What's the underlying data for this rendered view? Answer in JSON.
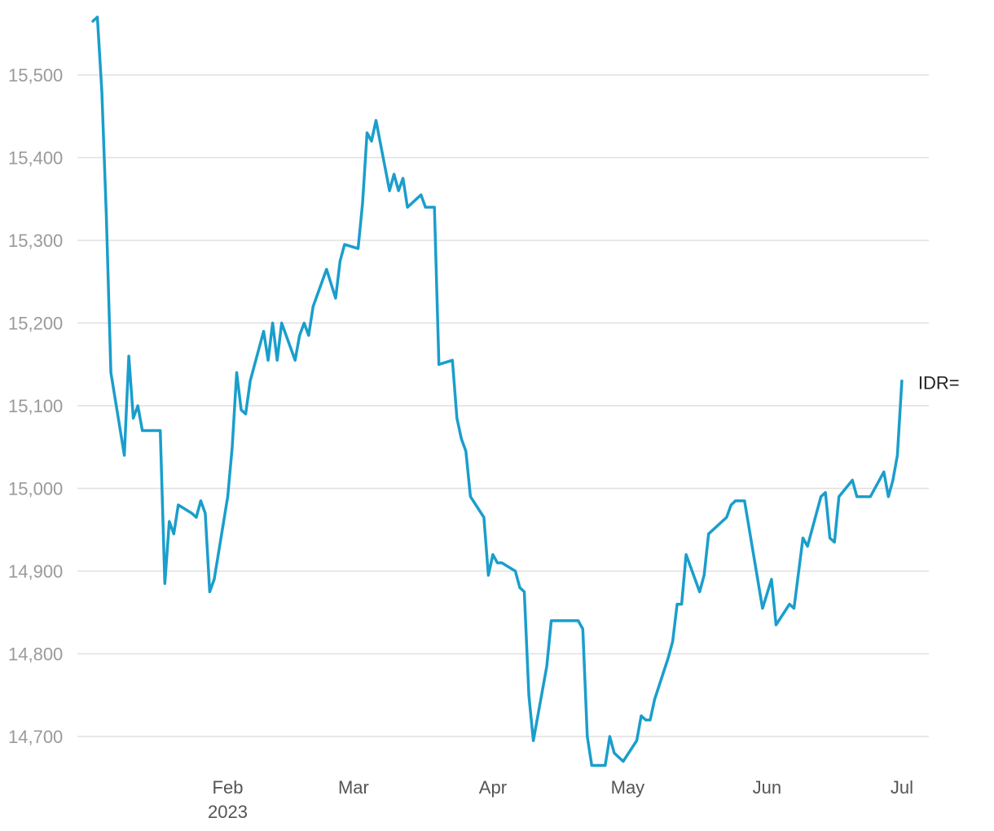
{
  "chart_data": {
    "type": "line",
    "title": "",
    "xlabel": "",
    "ylabel": "",
    "ylim": [
      14665,
      15570
    ],
    "xlim": [
      "2023-01-02",
      "2023-07-07"
    ],
    "grid": true,
    "line_color": "#1a9ecc",
    "yticks": [
      {
        "value": 14700,
        "label": "14,700"
      },
      {
        "value": 14800,
        "label": "14,800"
      },
      {
        "value": 14900,
        "label": "14,900"
      },
      {
        "value": 15000,
        "label": "15,000"
      },
      {
        "value": 15100,
        "label": "15,100"
      },
      {
        "value": 15200,
        "label": "15,200"
      },
      {
        "value": 15300,
        "label": "15,300"
      },
      {
        "value": 15400,
        "label": "15,400"
      },
      {
        "value": 15500,
        "label": "15,500"
      }
    ],
    "xticks": [
      {
        "date": "2023-02-01",
        "label": "Feb",
        "sublabel": "2023"
      },
      {
        "date": "2023-03-01",
        "label": "Mar",
        "sublabel": ""
      },
      {
        "date": "2023-04-01",
        "label": "Apr",
        "sublabel": ""
      },
      {
        "date": "2023-05-01",
        "label": "May",
        "sublabel": ""
      },
      {
        "date": "2023-06-01",
        "label": "Jun",
        "sublabel": ""
      },
      {
        "date": "2023-07-01",
        "label": "Jul",
        "sublabel": ""
      }
    ],
    "series": [
      {
        "name": "IDR=",
        "points": [
          [
            "2023-01-02",
            15565
          ],
          [
            "2023-01-03",
            15570
          ],
          [
            "2023-01-04",
            15480
          ],
          [
            "2023-01-05",
            15330
          ],
          [
            "2023-01-06",
            15140
          ],
          [
            "2023-01-09",
            15040
          ],
          [
            "2023-01-10",
            15160
          ],
          [
            "2023-01-11",
            15085
          ],
          [
            "2023-01-12",
            15100
          ],
          [
            "2023-01-13",
            15070
          ],
          [
            "2023-01-16",
            15070
          ],
          [
            "2023-01-17",
            15070
          ],
          [
            "2023-01-18",
            14885
          ],
          [
            "2023-01-19",
            14960
          ],
          [
            "2023-01-20",
            14945
          ],
          [
            "2023-01-21",
            14980
          ],
          [
            "2023-01-24",
            14970
          ],
          [
            "2023-01-25",
            14965
          ],
          [
            "2023-01-26",
            14985
          ],
          [
            "2023-01-27",
            14970
          ],
          [
            "2023-01-28",
            14875
          ],
          [
            "2023-01-29",
            14890
          ],
          [
            "2023-02-01",
            14990
          ],
          [
            "2023-02-02",
            15050
          ],
          [
            "2023-02-03",
            15140
          ],
          [
            "2023-02-04",
            15095
          ],
          [
            "2023-02-05",
            15090
          ],
          [
            "2023-02-06",
            15130
          ],
          [
            "2023-02-09",
            15190
          ],
          [
            "2023-02-10",
            15155
          ],
          [
            "2023-02-11",
            15200
          ],
          [
            "2023-02-12",
            15155
          ],
          [
            "2023-02-13",
            15200
          ],
          [
            "2023-02-16",
            15155
          ],
          [
            "2023-02-17",
            15185
          ],
          [
            "2023-02-18",
            15200
          ],
          [
            "2023-02-19",
            15185
          ],
          [
            "2023-02-20",
            15220
          ],
          [
            "2023-02-23",
            15265
          ],
          [
            "2023-02-25",
            15230
          ],
          [
            "2023-02-26",
            15275
          ],
          [
            "2023-02-27",
            15295
          ],
          [
            "2023-03-02",
            15290
          ],
          [
            "2023-03-03",
            15345
          ],
          [
            "2023-03-04",
            15430
          ],
          [
            "2023-03-05",
            15420
          ],
          [
            "2023-03-06",
            15445
          ],
          [
            "2023-03-09",
            15360
          ],
          [
            "2023-03-10",
            15380
          ],
          [
            "2023-03-11",
            15360
          ],
          [
            "2023-03-12",
            15375
          ],
          [
            "2023-03-13",
            15340
          ],
          [
            "2023-03-16",
            15355
          ],
          [
            "2023-03-17",
            15340
          ],
          [
            "2023-03-19",
            15340
          ],
          [
            "2023-03-20",
            15150
          ],
          [
            "2023-03-23",
            15155
          ],
          [
            "2023-03-24",
            15085
          ],
          [
            "2023-03-25",
            15060
          ],
          [
            "2023-03-26",
            15045
          ],
          [
            "2023-03-27",
            14990
          ],
          [
            "2023-03-30",
            14965
          ],
          [
            "2023-03-31",
            14895
          ],
          [
            "2023-04-01",
            14920
          ],
          [
            "2023-04-02",
            14910
          ],
          [
            "2023-04-03",
            14910
          ],
          [
            "2023-04-06",
            14900
          ],
          [
            "2023-04-07",
            14880
          ],
          [
            "2023-04-08",
            14875
          ],
          [
            "2023-04-09",
            14750
          ],
          [
            "2023-04-10",
            14695
          ],
          [
            "2023-04-13",
            14785
          ],
          [
            "2023-04-14",
            14840
          ],
          [
            "2023-04-20",
            14840
          ],
          [
            "2023-04-21",
            14830
          ],
          [
            "2023-04-22",
            14700
          ],
          [
            "2023-04-23",
            14665
          ],
          [
            "2023-04-26",
            14665
          ],
          [
            "2023-04-27",
            14700
          ],
          [
            "2023-04-28",
            14680
          ],
          [
            "2023-04-30",
            14670
          ],
          [
            "2023-05-03",
            14695
          ],
          [
            "2023-05-04",
            14725
          ],
          [
            "2023-05-05",
            14720
          ],
          [
            "2023-05-06",
            14720
          ],
          [
            "2023-05-07",
            14745
          ],
          [
            "2023-05-10",
            14795
          ],
          [
            "2023-05-11",
            14815
          ],
          [
            "2023-05-12",
            14860
          ],
          [
            "2023-05-13",
            14860
          ],
          [
            "2023-05-14",
            14920
          ],
          [
            "2023-05-17",
            14875
          ],
          [
            "2023-05-18",
            14895
          ],
          [
            "2023-05-19",
            14945
          ],
          [
            "2023-05-23",
            14965
          ],
          [
            "2023-05-24",
            14980
          ],
          [
            "2023-05-25",
            14985
          ],
          [
            "2023-05-27",
            14985
          ],
          [
            "2023-05-31",
            14855
          ],
          [
            "2023-06-02",
            14890
          ],
          [
            "2023-06-03",
            14835
          ],
          [
            "2023-06-06",
            14860
          ],
          [
            "2023-06-07",
            14855
          ],
          [
            "2023-06-09",
            14940
          ],
          [
            "2023-06-10",
            14930
          ],
          [
            "2023-06-13",
            14990
          ],
          [
            "2023-06-14",
            14995
          ],
          [
            "2023-06-15",
            14940
          ],
          [
            "2023-06-16",
            14935
          ],
          [
            "2023-06-17",
            14990
          ],
          [
            "2023-06-20",
            15010
          ],
          [
            "2023-06-21",
            14990
          ],
          [
            "2023-06-24",
            14990
          ],
          [
            "2023-06-27",
            15020
          ],
          [
            "2023-06-28",
            14990
          ],
          [
            "2023-06-29",
            15010
          ],
          [
            "2023-06-30",
            15040
          ],
          [
            "2023-07-01",
            15130
          ]
        ]
      }
    ]
  }
}
